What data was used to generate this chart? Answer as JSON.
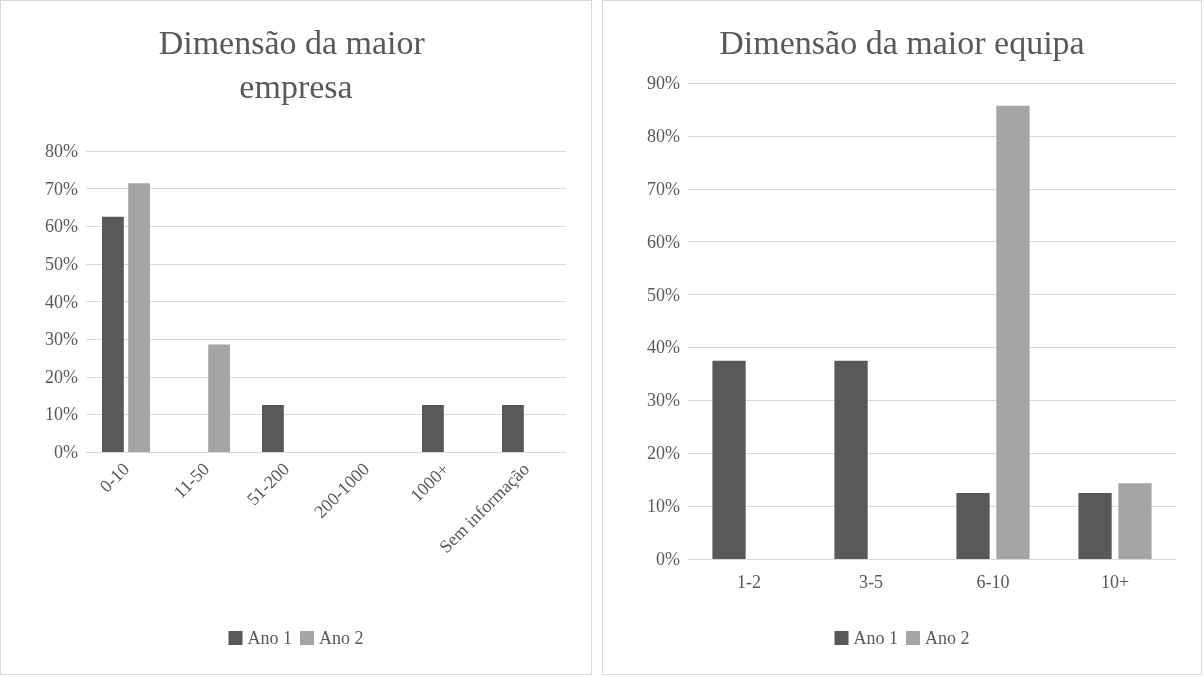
{
  "chart_data": [
    {
      "type": "bar",
      "title": "Dimensão da maior empresa",
      "categories": [
        "0-10",
        "11-50",
        "51-200",
        "200-1000",
        "1000+",
        "Sem informação"
      ],
      "series": [
        {
          "name": "Ano 1",
          "color": "#595959",
          "values": [
            62.5,
            0,
            12.5,
            0,
            12.5,
            12.5
          ]
        },
        {
          "name": "Ano 2",
          "color": "#a5a5a5",
          "values": [
            71.4,
            28.6,
            0,
            0,
            0,
            0
          ]
        }
      ],
      "ylim": [
        0,
        80
      ],
      "yticks": [
        {
          "value": 0,
          "label": "0%"
        },
        {
          "value": 10,
          "label": "10%"
        },
        {
          "value": 20,
          "label": "20%"
        },
        {
          "value": 30,
          "label": "30%"
        },
        {
          "value": 40,
          "label": "40%"
        },
        {
          "value": 50,
          "label": "50%"
        },
        {
          "value": 60,
          "label": "60%"
        },
        {
          "value": 70,
          "label": "70%"
        },
        {
          "value": 80,
          "label": "80%"
        }
      ],
      "grid": "y",
      "legend": "bottom"
    },
    {
      "type": "bar",
      "title": "Dimensão da maior equipa",
      "categories": [
        "1-2",
        "3-5",
        "6-10",
        "10+"
      ],
      "series": [
        {
          "name": "Ano 1",
          "color": "#595959",
          "values": [
            37.5,
            37.5,
            12.5,
            12.5
          ]
        },
        {
          "name": "Ano 2",
          "color": "#a5a5a5",
          "values": [
            0,
            0,
            85.7,
            14.3
          ]
        }
      ],
      "ylim": [
        0,
        90
      ],
      "yticks": [
        {
          "value": 0,
          "label": "0%"
        },
        {
          "value": 10,
          "label": "10%"
        },
        {
          "value": 20,
          "label": "20%"
        },
        {
          "value": 30,
          "label": "30%"
        },
        {
          "value": 40,
          "label": "40%"
        },
        {
          "value": 50,
          "label": "50%"
        },
        {
          "value": 60,
          "label": "60%"
        },
        {
          "value": 70,
          "label": "70%"
        },
        {
          "value": 80,
          "label": "80%"
        },
        {
          "value": 90,
          "label": "90%"
        }
      ],
      "grid": "y",
      "legend": "bottom"
    }
  ]
}
